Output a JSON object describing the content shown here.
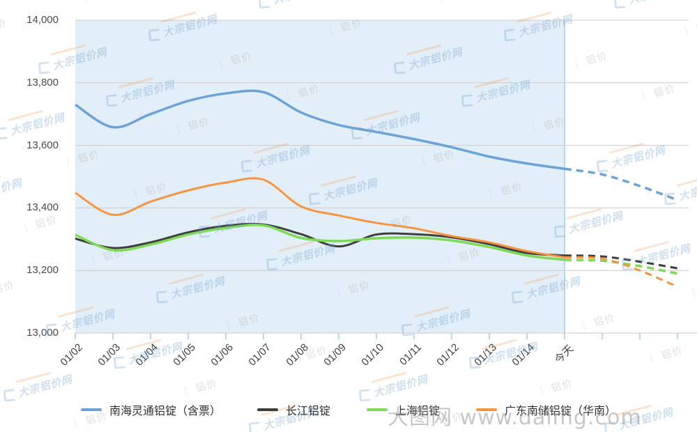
{
  "watermarks": {
    "brand_text": "大宗铝价网",
    "tag_text": "铝价",
    "separator": "｜",
    "site_text": "大图网 www.daimg.com",
    "brand_color": "#6e9fd2",
    "tag_color": "#8f8f8f",
    "accent_color": "#f2995c"
  },
  "chart_data": {
    "type": "line",
    "title": "",
    "xlabel": "",
    "ylabel": "",
    "ylim": [
      13000,
      14000
    ],
    "grid": true,
    "legend_position": "bottom",
    "today_label": "今天",
    "forecast_start_index": 13,
    "categories": [
      "01/02",
      "01/03",
      "01/04",
      "01/05",
      "01/06",
      "01/07",
      "01/08",
      "01/09",
      "01/10",
      "01/11",
      "01/12",
      "01/13",
      "01/14",
      "今天",
      "",
      "",
      ""
    ],
    "y_ticks": {
      "labels": [
        "14,000",
        "13,800",
        "13,600",
        "13,400",
        "13,200",
        "13,000"
      ],
      "values": [
        14000,
        13800,
        13600,
        13400,
        13200,
        13000
      ]
    },
    "style": {
      "grid_color": "#cccccc",
      "axis_color": "#c8c8c8",
      "tick_color": "#a9c7e4",
      "band_color": "#e3eff8",
      "boundary_line_color": "#b9d6ec",
      "label_color": "#3c3c3c"
    },
    "series": [
      {
        "name": "南海灵通铝锭（含票）",
        "color": "#6ba3d9",
        "line_width": 3.5,
        "values": [
          13730,
          13658,
          13700,
          13742,
          13766,
          13770,
          13705,
          13665,
          13643,
          13620,
          13594,
          13564,
          13542,
          13525,
          13507,
          13470,
          13425
        ]
      },
      {
        "name": "长江铝锭",
        "color": "#3d3d3d",
        "line_width": 3,
        "values": [
          13302,
          13272,
          13290,
          13322,
          13343,
          13347,
          13316,
          13277,
          13315,
          13316,
          13306,
          13284,
          13256,
          13248,
          13245,
          13228,
          13207
        ]
      },
      {
        "name": "上海铝锭",
        "color": "#7ed957",
        "line_width": 3.5,
        "values": [
          13314,
          13265,
          13283,
          13315,
          13336,
          13344,
          13304,
          13294,
          13303,
          13305,
          13296,
          13275,
          13248,
          13234,
          13231,
          13214,
          13190
        ]
      },
      {
        "name": "广东南储铝锭（华南）",
        "color": "#f79440",
        "line_width": 3,
        "values": [
          13448,
          13378,
          13420,
          13456,
          13481,
          13490,
          13405,
          13376,
          13352,
          13335,
          13310,
          13290,
          13262,
          13242,
          13238,
          13200,
          13148
        ]
      }
    ]
  }
}
